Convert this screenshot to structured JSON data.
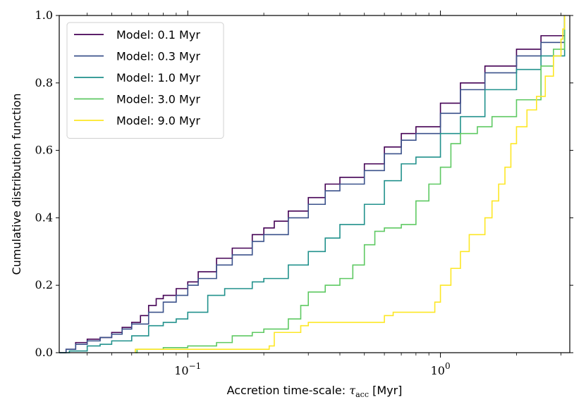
{
  "chart_data": {
    "type": "line",
    "step": true,
    "xscale": "log",
    "xlim": [
      0.031,
      3.25
    ],
    "ylim": [
      0.0,
      1.0
    ],
    "xlabel": "Accretion time-scale:",
    "xlabel_symbol": "τ",
    "xlabel_sub": "acc",
    "xlabel_unit": " [Myr]",
    "ylabel": "Cumulative distribution function",
    "x_major_ticks": [
      {
        "value": 0.1,
        "base": "10",
        "exp": "−1"
      },
      {
        "value": 1.0,
        "base": "10",
        "exp": "0"
      }
    ],
    "y_ticks": [
      {
        "value": 0.0,
        "label": "0.0"
      },
      {
        "value": 0.2,
        "label": "0.2"
      },
      {
        "value": 0.4,
        "label": "0.4"
      },
      {
        "value": 0.6,
        "label": "0.6"
      },
      {
        "value": 0.8,
        "label": "0.8"
      },
      {
        "value": 1.0,
        "label": "1.0"
      }
    ],
    "legend_position": "upper-left",
    "series": [
      {
        "name": "Model: 0.1 Myr",
        "color": "#440154",
        "points": [
          [
            0.031,
            0.0
          ],
          [
            0.033,
            0.01
          ],
          [
            0.036,
            0.03
          ],
          [
            0.04,
            0.04
          ],
          [
            0.045,
            0.045
          ],
          [
            0.05,
            0.06
          ],
          [
            0.055,
            0.075
          ],
          [
            0.06,
            0.09
          ],
          [
            0.065,
            0.11
          ],
          [
            0.07,
            0.14
          ],
          [
            0.075,
            0.16
          ],
          [
            0.08,
            0.17
          ],
          [
            0.09,
            0.19
          ],
          [
            0.1,
            0.21
          ],
          [
            0.11,
            0.24
          ],
          [
            0.13,
            0.28
          ],
          [
            0.15,
            0.31
          ],
          [
            0.18,
            0.35
          ],
          [
            0.2,
            0.37
          ],
          [
            0.22,
            0.39
          ],
          [
            0.25,
            0.42
          ],
          [
            0.3,
            0.46
          ],
          [
            0.35,
            0.5
          ],
          [
            0.4,
            0.52
          ],
          [
            0.5,
            0.56
          ],
          [
            0.6,
            0.61
          ],
          [
            0.7,
            0.65
          ],
          [
            0.8,
            0.67
          ],
          [
            1.0,
            0.74
          ],
          [
            1.2,
            0.8
          ],
          [
            1.5,
            0.85
          ],
          [
            2.0,
            0.9
          ],
          [
            2.5,
            0.94
          ],
          [
            3.1,
            1.0
          ]
        ]
      },
      {
        "name": "Model: 0.3 Myr",
        "color": "#3b528b",
        "points": [
          [
            0.031,
            0.0
          ],
          [
            0.033,
            0.01
          ],
          [
            0.036,
            0.025
          ],
          [
            0.04,
            0.035
          ],
          [
            0.045,
            0.045
          ],
          [
            0.05,
            0.055
          ],
          [
            0.055,
            0.07
          ],
          [
            0.06,
            0.085
          ],
          [
            0.07,
            0.12
          ],
          [
            0.08,
            0.15
          ],
          [
            0.09,
            0.17
          ],
          [
            0.1,
            0.2
          ],
          [
            0.11,
            0.22
          ],
          [
            0.13,
            0.26
          ],
          [
            0.15,
            0.29
          ],
          [
            0.18,
            0.33
          ],
          [
            0.2,
            0.35
          ],
          [
            0.25,
            0.4
          ],
          [
            0.3,
            0.44
          ],
          [
            0.35,
            0.48
          ],
          [
            0.4,
            0.5
          ],
          [
            0.5,
            0.54
          ],
          [
            0.6,
            0.59
          ],
          [
            0.7,
            0.63
          ],
          [
            0.8,
            0.65
          ],
          [
            1.0,
            0.71
          ],
          [
            1.2,
            0.78
          ],
          [
            1.5,
            0.83
          ],
          [
            2.0,
            0.88
          ],
          [
            2.5,
            0.92
          ],
          [
            3.1,
            1.0
          ]
        ]
      },
      {
        "name": "Model: 1.0 Myr",
        "color": "#21918c",
        "points": [
          [
            0.031,
            0.0
          ],
          [
            0.034,
            0.005
          ],
          [
            0.04,
            0.02
          ],
          [
            0.045,
            0.025
          ],
          [
            0.05,
            0.035
          ],
          [
            0.06,
            0.05
          ],
          [
            0.07,
            0.08
          ],
          [
            0.08,
            0.09
          ],
          [
            0.09,
            0.1
          ],
          [
            0.1,
            0.12
          ],
          [
            0.12,
            0.17
          ],
          [
            0.14,
            0.19
          ],
          [
            0.18,
            0.21
          ],
          [
            0.2,
            0.22
          ],
          [
            0.25,
            0.26
          ],
          [
            0.3,
            0.3
          ],
          [
            0.35,
            0.34
          ],
          [
            0.4,
            0.38
          ],
          [
            0.5,
            0.44
          ],
          [
            0.6,
            0.51
          ],
          [
            0.7,
            0.56
          ],
          [
            0.8,
            0.58
          ],
          [
            1.0,
            0.65
          ],
          [
            1.2,
            0.7
          ],
          [
            1.5,
            0.78
          ],
          [
            2.0,
            0.84
          ],
          [
            2.5,
            0.88
          ],
          [
            3.1,
            1.0
          ]
        ]
      },
      {
        "name": "Model: 3.0 Myr",
        "color": "#5ec962",
        "points": [
          [
            0.062,
            0.0
          ],
          [
            0.063,
            0.01
          ],
          [
            0.08,
            0.015
          ],
          [
            0.1,
            0.02
          ],
          [
            0.13,
            0.03
          ],
          [
            0.15,
            0.05
          ],
          [
            0.18,
            0.06
          ],
          [
            0.2,
            0.07
          ],
          [
            0.25,
            0.1
          ],
          [
            0.28,
            0.14
          ],
          [
            0.3,
            0.18
          ],
          [
            0.35,
            0.2
          ],
          [
            0.4,
            0.22
          ],
          [
            0.45,
            0.26
          ],
          [
            0.5,
            0.32
          ],
          [
            0.55,
            0.36
          ],
          [
            0.6,
            0.37
          ],
          [
            0.7,
            0.38
          ],
          [
            0.8,
            0.45
          ],
          [
            0.9,
            0.5
          ],
          [
            1.0,
            0.55
          ],
          [
            1.1,
            0.62
          ],
          [
            1.2,
            0.65
          ],
          [
            1.4,
            0.67
          ],
          [
            1.6,
            0.7
          ],
          [
            2.0,
            0.75
          ],
          [
            2.5,
            0.85
          ],
          [
            2.8,
            0.9
          ],
          [
            3.1,
            1.0
          ]
        ]
      },
      {
        "name": "Model: 9.0 Myr",
        "color": "#fde725",
        "points": [
          [
            0.062,
            0.0
          ],
          [
            0.062,
            0.01
          ],
          [
            0.2,
            0.01
          ],
          [
            0.21,
            0.02
          ],
          [
            0.22,
            0.06
          ],
          [
            0.25,
            0.06
          ],
          [
            0.28,
            0.08
          ],
          [
            0.3,
            0.09
          ],
          [
            0.55,
            0.09
          ],
          [
            0.6,
            0.11
          ],
          [
            0.65,
            0.12
          ],
          [
            0.8,
            0.12
          ],
          [
            0.95,
            0.15
          ],
          [
            1.0,
            0.2
          ],
          [
            1.1,
            0.25
          ],
          [
            1.2,
            0.3
          ],
          [
            1.3,
            0.35
          ],
          [
            1.5,
            0.4
          ],
          [
            1.6,
            0.45
          ],
          [
            1.7,
            0.5
          ],
          [
            1.8,
            0.55
          ],
          [
            1.9,
            0.62
          ],
          [
            2.0,
            0.67
          ],
          [
            2.2,
            0.72
          ],
          [
            2.4,
            0.76
          ],
          [
            2.6,
            0.82
          ],
          [
            2.8,
            0.88
          ],
          [
            3.0,
            0.93
          ],
          [
            3.05,
            0.96
          ],
          [
            3.1,
            1.0
          ]
        ]
      }
    ]
  }
}
